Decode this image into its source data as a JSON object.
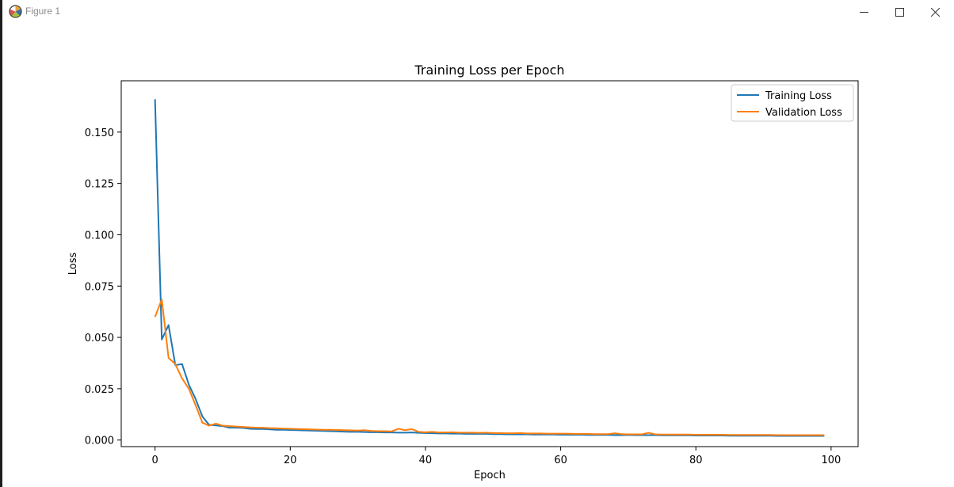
{
  "window": {
    "title": "Figure 1",
    "controls": [
      "minimize-icon",
      "maximize-icon",
      "close-icon"
    ]
  },
  "chart_data": {
    "type": "line",
    "title": "Training Loss per Epoch",
    "xlabel": "Epoch",
    "ylabel": "Loss",
    "xlim": [
      -5,
      104
    ],
    "ylim": [
      -0.0032,
      0.175
    ],
    "xticks": [
      0,
      20,
      40,
      60,
      80,
      100
    ],
    "yticks": [
      0.0,
      0.025,
      0.05,
      0.075,
      0.1,
      0.125,
      0.15
    ],
    "ytick_labels": [
      "0.000",
      "0.025",
      "0.050",
      "0.075",
      "0.100",
      "0.125",
      "0.150"
    ],
    "grid": false,
    "legend": "top-right",
    "series": [
      {
        "name": "Training Loss",
        "color": "#1f77b4",
        "x": [
          0,
          1,
          2,
          3,
          4,
          5,
          6,
          7,
          8,
          9,
          10,
          11,
          12,
          13,
          14,
          15,
          16,
          17,
          18,
          19,
          20,
          21,
          22,
          23,
          24,
          25,
          26,
          27,
          28,
          29,
          30,
          31,
          32,
          33,
          34,
          35,
          36,
          37,
          38,
          39,
          40,
          41,
          42,
          43,
          44,
          45,
          46,
          47,
          48,
          49,
          50,
          51,
          52,
          53,
          54,
          55,
          56,
          57,
          58,
          59,
          60,
          61,
          62,
          63,
          64,
          65,
          66,
          67,
          68,
          69,
          70,
          71,
          72,
          73,
          74,
          75,
          76,
          77,
          78,
          79,
          80,
          81,
          82,
          83,
          84,
          85,
          86,
          87,
          88,
          89,
          90,
          91,
          92,
          93,
          94,
          95,
          96,
          97,
          98,
          99
        ],
        "values": [
          0.166,
          0.049,
          0.056,
          0.0365,
          0.037,
          0.027,
          0.02,
          0.0115,
          0.0074,
          0.0071,
          0.0068,
          0.006,
          0.006,
          0.0059,
          0.0055,
          0.0054,
          0.0054,
          0.0052,
          0.005,
          0.005,
          0.0049,
          0.0048,
          0.0047,
          0.0046,
          0.0045,
          0.0044,
          0.0043,
          0.0042,
          0.0041,
          0.004,
          0.004,
          0.0039,
          0.0038,
          0.0038,
          0.0037,
          0.0037,
          0.0036,
          0.0036,
          0.0037,
          0.0035,
          0.0034,
          0.0033,
          0.0032,
          0.0032,
          0.0031,
          0.0031,
          0.003,
          0.003,
          0.003,
          0.003,
          0.0029,
          0.0029,
          0.0028,
          0.0028,
          0.0028,
          0.0028,
          0.0027,
          0.0027,
          0.0027,
          0.0027,
          0.0026,
          0.0026,
          0.0026,
          0.0026,
          0.0025,
          0.0025,
          0.0025,
          0.0025,
          0.0024,
          0.0024,
          0.0025,
          0.0024,
          0.0024,
          0.0024,
          0.0024,
          0.0023,
          0.0023,
          0.0023,
          0.0023,
          0.0023,
          0.0022,
          0.0022,
          0.0022,
          0.0022,
          0.0022,
          0.0021,
          0.0021,
          0.0021,
          0.0021,
          0.0021,
          0.0021,
          0.0021,
          0.002,
          0.002,
          0.002,
          0.002,
          0.002,
          0.002,
          0.002,
          0.002
        ]
      },
      {
        "name": "Validation Loss",
        "color": "#ff7f0e",
        "x": [
          0,
          1,
          2,
          3,
          4,
          5,
          6,
          7,
          8,
          9,
          10,
          11,
          12,
          13,
          14,
          15,
          16,
          17,
          18,
          19,
          20,
          21,
          22,
          23,
          24,
          25,
          26,
          27,
          28,
          29,
          30,
          31,
          32,
          33,
          34,
          35,
          36,
          37,
          38,
          39,
          40,
          41,
          42,
          43,
          44,
          45,
          46,
          47,
          48,
          49,
          50,
          51,
          52,
          53,
          54,
          55,
          56,
          57,
          58,
          59,
          60,
          61,
          62,
          63,
          64,
          65,
          66,
          67,
          68,
          69,
          70,
          71,
          72,
          73,
          74,
          75,
          76,
          77,
          78,
          79,
          80,
          81,
          82,
          83,
          84,
          85,
          86,
          87,
          88,
          89,
          90,
          91,
          92,
          93,
          94,
          95,
          96,
          97,
          98,
          99
        ],
        "values": [
          0.06,
          0.0685,
          0.04,
          0.037,
          0.03,
          0.025,
          0.017,
          0.0085,
          0.007,
          0.008,
          0.007,
          0.0068,
          0.0066,
          0.0064,
          0.0062,
          0.006,
          0.006,
          0.0058,
          0.0057,
          0.0056,
          0.0055,
          0.0054,
          0.0053,
          0.0052,
          0.0051,
          0.005,
          0.005,
          0.0049,
          0.0048,
          0.0047,
          0.0046,
          0.0048,
          0.0044,
          0.0043,
          0.0043,
          0.0042,
          0.0055,
          0.0048,
          0.0053,
          0.004,
          0.0038,
          0.004,
          0.0037,
          0.0037,
          0.0038,
          0.0036,
          0.0036,
          0.0036,
          0.0035,
          0.0036,
          0.0034,
          0.0034,
          0.0033,
          0.0033,
          0.0034,
          0.0032,
          0.0032,
          0.0032,
          0.0031,
          0.0031,
          0.0031,
          0.0031,
          0.003,
          0.003,
          0.003,
          0.0029,
          0.0029,
          0.0029,
          0.0033,
          0.0029,
          0.0028,
          0.0028,
          0.0028,
          0.0035,
          0.0028,
          0.0027,
          0.0027,
          0.0027,
          0.0027,
          0.0027,
          0.0026,
          0.0026,
          0.0026,
          0.0026,
          0.0026,
          0.0025,
          0.0025,
          0.0025,
          0.0025,
          0.0025,
          0.0025,
          0.0025,
          0.0024,
          0.0024,
          0.0024,
          0.0024,
          0.0024,
          0.0024,
          0.0024,
          0.0024
        ]
      }
    ]
  }
}
